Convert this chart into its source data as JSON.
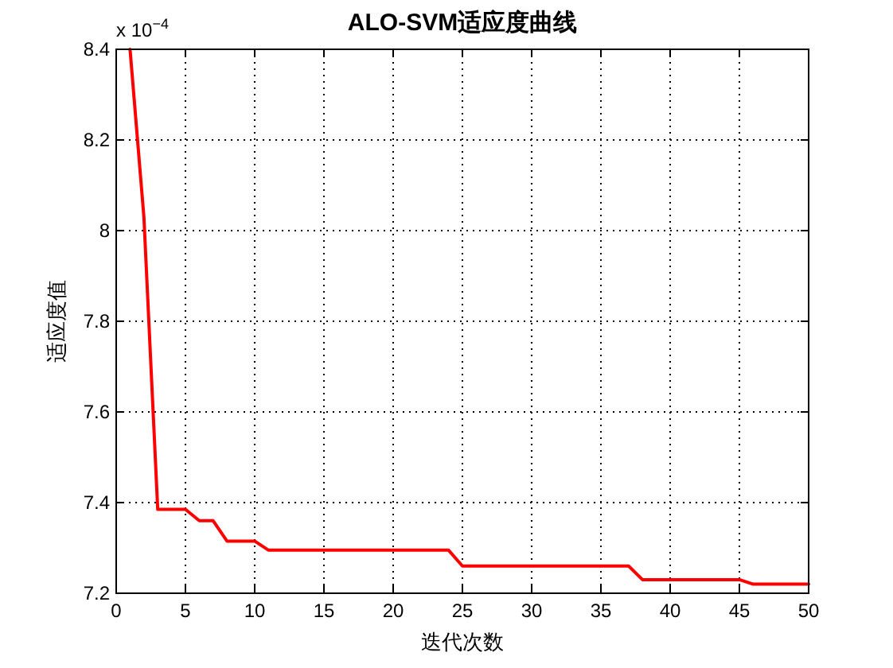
{
  "chart_data": {
    "type": "line",
    "title": "ALO-SVM适应度曲线",
    "xlabel": "迭代次数",
    "ylabel": "适应度值",
    "annotations": [
      "x 10$^{−4}$"
    ],
    "x": [
      1,
      2,
      3,
      4,
      5,
      6,
      7,
      8,
      9,
      10,
      11,
      12,
      13,
      14,
      15,
      16,
      17,
      18,
      19,
      20,
      21,
      22,
      23,
      24,
      25,
      26,
      27,
      28,
      29,
      30,
      31,
      32,
      33,
      34,
      35,
      36,
      37,
      38,
      39,
      40,
      41,
      42,
      43,
      44,
      45,
      46,
      47,
      48,
      49,
      50
    ],
    "series": [
      {
        "color": "#ff0000",
        "values": [
          8.4,
          8.03,
          7.385,
          7.385,
          7.385,
          7.36,
          7.36,
          7.315,
          7.315,
          7.315,
          7.295,
          7.295,
          7.295,
          7.295,
          7.295,
          7.295,
          7.295,
          7.295,
          7.295,
          7.295,
          7.295,
          7.295,
          7.295,
          7.295,
          7.26,
          7.26,
          7.26,
          7.26,
          7.26,
          7.26,
          7.26,
          7.26,
          7.26,
          7.26,
          7.26,
          7.26,
          7.26,
          7.23,
          7.23,
          7.23,
          7.23,
          7.23,
          7.23,
          7.23,
          7.23,
          7.22,
          7.22,
          7.22,
          7.22,
          7.22
        ]
      }
    ],
    "xlim": [
      0,
      50
    ],
    "xticks": [
      0,
      5,
      10,
      15,
      20,
      25,
      30,
      35,
      40,
      45,
      50
    ],
    "ylim": [
      7.2,
      8.4
    ],
    "yticks": [
      7.2,
      7.4,
      7.6,
      7.8,
      8,
      8.2,
      8.4
    ],
    "grid": true,
    "line_style": "solid",
    "marker": "none"
  }
}
